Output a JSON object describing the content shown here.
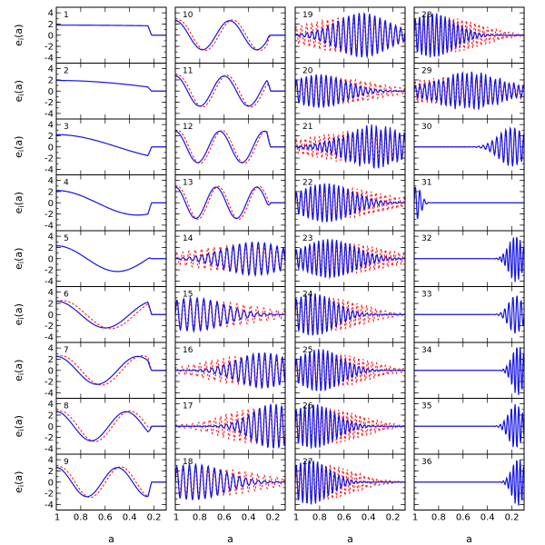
{
  "chart_data": {
    "type": "line",
    "title": "",
    "xlabel": "a",
    "ylabel": "e_i(a)",
    "xlim": [
      1.0,
      0.1
    ],
    "ylim": [
      -5,
      5
    ],
    "xticks": [
      1,
      0.8,
      0.6,
      0.4,
      0.2
    ],
    "xtick_labels": [
      "1",
      "0.8",
      "0.6",
      "0.4",
      "0.2"
    ],
    "yticks": [
      -4,
      -2,
      0,
      2,
      4
    ],
    "ytick_labels": [
      "-4",
      "-2",
      "0",
      "2",
      "4"
    ],
    "grid": false,
    "layout": {
      "rows": 9,
      "columns": 4
    },
    "series_styles": [
      {
        "color": "#1414e6",
        "linestyle": "solid"
      },
      {
        "color": "#ff1a1a",
        "linestyle": "dashed"
      }
    ],
    "panels": [
      {
        "label": "1",
        "kind": "smooth",
        "amp": 1.8,
        "freq": 0.15,
        "center": 0.55,
        "width": 0.9,
        "red": 0
      },
      {
        "label": "2",
        "kind": "smooth",
        "amp": 1.9,
        "freq": 0.5,
        "center": 0.55,
        "width": 0.9,
        "red": 0
      },
      {
        "label": "3",
        "kind": "smooth",
        "amp": 2.2,
        "freq": 1.0,
        "center": 0.55,
        "width": 0.9,
        "red": 0
      },
      {
        "label": "4",
        "kind": "smooth",
        "amp": 2.2,
        "freq": 1.5,
        "center": 0.55,
        "width": 0.9,
        "red": 0
      },
      {
        "label": "5",
        "kind": "smooth",
        "amp": 2.3,
        "freq": 2.0,
        "center": 0.55,
        "width": 0.9,
        "red": 0
      },
      {
        "label": "6",
        "kind": "smooth",
        "amp": 2.4,
        "freq": 2.5,
        "center": 0.55,
        "width": 0.9,
        "red": 0.1
      },
      {
        "label": "7",
        "kind": "smooth",
        "amp": 2.5,
        "freq": 3.0,
        "center": 0.55,
        "width": 0.9,
        "red": 0.15
      },
      {
        "label": "8",
        "kind": "smooth",
        "amp": 2.6,
        "freq": 3.5,
        "center": 0.55,
        "width": 0.9,
        "red": 0.2
      },
      {
        "label": "9",
        "kind": "smooth",
        "amp": 2.6,
        "freq": 4.0,
        "center": 0.55,
        "width": 0.9,
        "red": 0.25
      },
      {
        "label": "10",
        "kind": "smooth",
        "amp": 2.6,
        "freq": 4.5,
        "center": 0.55,
        "width": 0.9,
        "red": 0.3
      },
      {
        "label": "11",
        "kind": "smooth",
        "amp": 2.7,
        "freq": 5.0,
        "center": 0.55,
        "width": 0.9,
        "red": 0.35
      },
      {
        "label": "12",
        "kind": "smooth",
        "amp": 2.8,
        "freq": 5.5,
        "center": 0.5,
        "width": 0.9,
        "red": 0.45
      },
      {
        "label": "13",
        "kind": "smooth",
        "amp": 2.8,
        "freq": 6.0,
        "center": 0.55,
        "width": 0.9,
        "red": 0.5
      },
      {
        "label": "14",
        "kind": "packet",
        "amp": 3.0,
        "freq": 7.5,
        "center": 0.35,
        "width": 0.35,
        "red": 0.8
      },
      {
        "label": "15",
        "kind": "packet",
        "amp": 3.0,
        "freq": 7.0,
        "center": 0.85,
        "width": 0.35,
        "red": 0.9
      },
      {
        "label": "16",
        "kind": "packet",
        "amp": 3.2,
        "freq": 8.0,
        "center": 0.28,
        "width": 0.3,
        "red": 0.9
      },
      {
        "label": "17",
        "kind": "packet",
        "amp": 4.0,
        "freq": 8.5,
        "center": 0.2,
        "width": 0.25,
        "red": 1.0
      },
      {
        "label": "18",
        "kind": "packet",
        "amp": 3.2,
        "freq": 7.5,
        "center": 0.85,
        "width": 0.35,
        "red": 1.0
      },
      {
        "label": "19",
        "kind": "packet",
        "amp": 4.0,
        "freq": 9.0,
        "center": 0.45,
        "width": 0.3,
        "red": 1.0
      },
      {
        "label": "20",
        "kind": "packet",
        "amp": 3.0,
        "freq": 9.5,
        "center": 0.8,
        "width": 0.3,
        "red": 1.0
      },
      {
        "label": "21",
        "kind": "spiky",
        "amp": 3.5,
        "freq": 10.0,
        "center": 0.35,
        "width": 0.35,
        "red": 0.8
      },
      {
        "label": "22",
        "kind": "packet",
        "amp": 3.5,
        "freq": 10.0,
        "center": 0.75,
        "width": 0.3,
        "red": 0.9
      },
      {
        "label": "23",
        "kind": "packet",
        "amp": 3.5,
        "freq": 10.5,
        "center": 0.72,
        "width": 0.3,
        "red": 1.0
      },
      {
        "label": "24",
        "kind": "packet",
        "amp": 3.8,
        "freq": 10.0,
        "center": 0.85,
        "width": 0.25,
        "red": 1.0
      },
      {
        "label": "25",
        "kind": "packet",
        "amp": 3.8,
        "freq": 10.5,
        "center": 0.8,
        "width": 0.25,
        "red": 0.9
      },
      {
        "label": "26",
        "kind": "packet",
        "amp": 4.0,
        "freq": 11.0,
        "center": 0.85,
        "width": 0.25,
        "red": 1.0
      },
      {
        "label": "27",
        "kind": "packet",
        "amp": 4.0,
        "freq": 11.0,
        "center": 0.88,
        "width": 0.22,
        "red": 0.8
      },
      {
        "label": "28",
        "kind": "packet",
        "amp": 4.0,
        "freq": 11.0,
        "center": 0.85,
        "width": 0.25,
        "red": 1.0
      },
      {
        "label": "29",
        "kind": "spiky",
        "amp": 3.0,
        "freq": 10.0,
        "center": 0.55,
        "width": 0.4,
        "red": 0.9
      },
      {
        "label": "30",
        "kind": "edge",
        "amp": 3.5,
        "freq": 9.0,
        "center": 0.2,
        "width": 0.15,
        "red": 0.1
      },
      {
        "label": "31",
        "kind": "leftspike",
        "amp": 3.0,
        "freq": 9.0,
        "center": 0.98,
        "width": 0.05,
        "red": 0
      },
      {
        "label": "32",
        "kind": "edge",
        "amp": 4.2,
        "freq": 12.0,
        "center": 0.17,
        "width": 0.08,
        "red": 0
      },
      {
        "label": "33",
        "kind": "edge",
        "amp": 3.5,
        "freq": 10.0,
        "center": 0.17,
        "width": 0.08,
        "red": 0
      },
      {
        "label": "34",
        "kind": "edge",
        "amp": 4.5,
        "freq": 12.0,
        "center": 0.15,
        "width": 0.07,
        "red": 0
      },
      {
        "label": "35",
        "kind": "edge",
        "amp": 4.0,
        "freq": 11.0,
        "center": 0.17,
        "width": 0.08,
        "red": 0
      },
      {
        "label": "36",
        "kind": "edge",
        "amp": 4.3,
        "freq": 12.0,
        "center": 0.15,
        "width": 0.07,
        "red": 0
      }
    ]
  }
}
